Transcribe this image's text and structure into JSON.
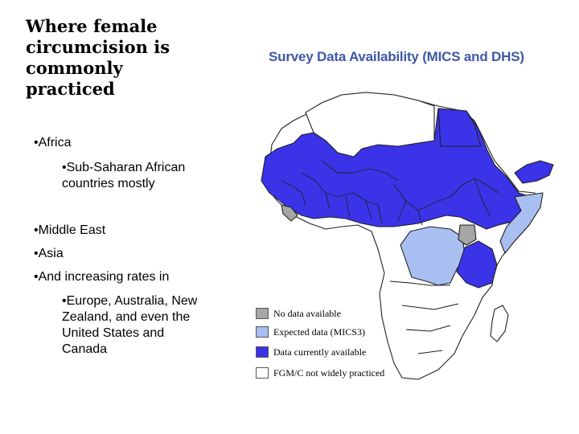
{
  "slide": {
    "title": "Where female\ncircumcision is\ncommonly\npracticed"
  },
  "bullets": [
    {
      "level": 1,
      "text": "•Africa"
    },
    {
      "level": 2,
      "text": "•Sub-Saharan African countries mostly"
    },
    {
      "level": 1,
      "text": "•Middle East"
    },
    {
      "level": 1,
      "text": "•Asia"
    },
    {
      "level": 1,
      "text": "•And increasing rates in"
    },
    {
      "level": 2,
      "text": "•Europe, Australia, New Zealand, and even the United States and Canada"
    }
  ],
  "map": {
    "title": "Survey Data Availability (MICS and DHS)",
    "legend": [
      {
        "label": "No data available",
        "color": "#a6a6a6"
      },
      {
        "label": "Expected data (MICS3)",
        "color": "#a9bff2"
      },
      {
        "label": "Data currently available",
        "color": "#3a33e8"
      },
      {
        "label": "FGM/C not widely practiced",
        "color": "#ffffff"
      }
    ]
  }
}
